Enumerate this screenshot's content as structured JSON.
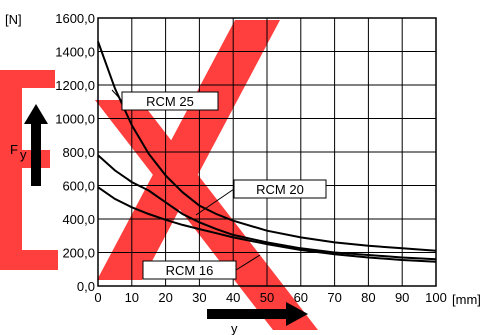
{
  "chart_data": {
    "type": "line",
    "x_unit": "[mm]",
    "y_unit": "[N]",
    "y_label": "F",
    "y_label_sub": "y",
    "x_label": "y",
    "xlim": [
      0,
      100
    ],
    "ylim": [
      0,
      1600
    ],
    "x_ticks": [
      0,
      10,
      20,
      30,
      40,
      50,
      60,
      70,
      80,
      90,
      100
    ],
    "y_ticks": [
      "0,0",
      "200,0",
      "400,0",
      "600,0",
      "800,0",
      "1000,0",
      "1200,0",
      "1400,0",
      "1600,0"
    ],
    "grid": true,
    "series": [
      {
        "name": "RCM 25",
        "x": [
          0,
          5,
          10,
          15,
          20,
          25,
          30,
          35,
          40,
          50,
          60,
          70,
          80,
          90,
          100
        ],
        "y": [
          1460,
          1180,
          960,
          790,
          660,
          560,
          480,
          430,
          390,
          330,
          290,
          260,
          240,
          225,
          210
        ]
      },
      {
        "name": "RCM 20",
        "x": [
          0,
          5,
          10,
          15,
          20,
          25,
          30,
          35,
          40,
          50,
          60,
          70,
          80,
          90,
          100
        ],
        "y": [
          780,
          690,
          620,
          570,
          500,
          430,
          380,
          340,
          305,
          260,
          225,
          200,
          185,
          170,
          160
        ]
      },
      {
        "name": "RCM 16",
        "x": [
          0,
          5,
          10,
          15,
          20,
          25,
          30,
          35,
          40,
          50,
          60,
          70,
          80,
          90,
          100
        ],
        "y": [
          590,
          520,
          470,
          430,
          395,
          365,
          340,
          315,
          290,
          250,
          215,
          190,
          170,
          155,
          145
        ]
      }
    ],
    "watermark_text": "EX",
    "colors": {
      "line": "#000000",
      "grid": "#000000",
      "watermark": "#ff2a2a"
    }
  }
}
